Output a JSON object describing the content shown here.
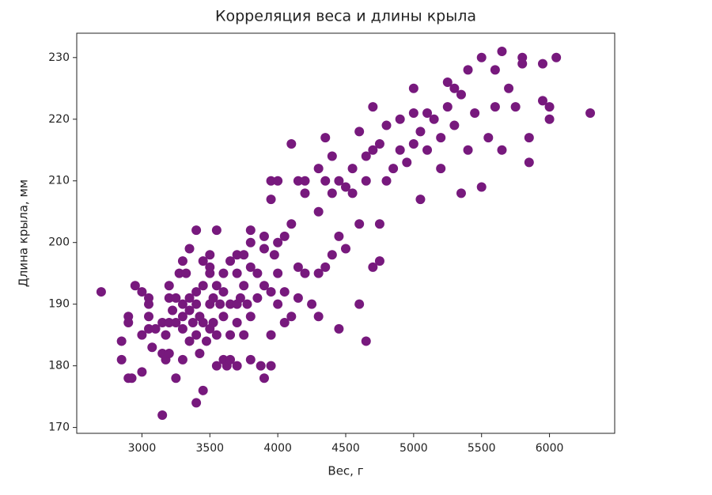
{
  "chart_data": {
    "type": "scatter",
    "title": "Корреляция веса и длины крыла",
    "x_label": "Вес, г",
    "y_label": "Длина крыла, мм",
    "color": "#77197d",
    "xlim": [
      2520,
      6480
    ],
    "ylim": [
      169.05,
      233.95
    ],
    "xticks": [
      3000,
      3500,
      4000,
      4500,
      5000,
      5500,
      6000
    ],
    "yticks": [
      170,
      180,
      190,
      200,
      210,
      220,
      230
    ],
    "x": [
      2700,
      2850,
      2850,
      2900,
      2900,
      2900,
      2925,
      2950,
      3000,
      3000,
      3000,
      3050,
      3050,
      3050,
      3050,
      3075,
      3100,
      3150,
      3150,
      3150,
      3175,
      3175,
      3200,
      3200,
      3200,
      3200,
      3225,
      3250,
      3250,
      3250,
      3275,
      3300,
      3300,
      3300,
      3300,
      3300,
      3325,
      3350,
      3350,
      3350,
      3350,
      3375,
      3400,
      3400,
      3400,
      3400,
      3400,
      3425,
      3425,
      3450,
      3450,
      3450,
      3450,
      3475,
      3500,
      3500,
      3500,
      3500,
      3500,
      3525,
      3525,
      3550,
      3550,
      3550,
      3550,
      3575,
      3600,
      3600,
      3600,
      3600,
      3625,
      3650,
      3650,
      3650,
      3650,
      3700,
      3700,
      3700,
      3700,
      3700,
      3725,
      3750,
      3750,
      3750,
      3775,
      3800,
      3800,
      3800,
      3800,
      3800,
      3850,
      3850,
      3875,
      3900,
      3900,
      3900,
      3900,
      3950,
      3950,
      3950,
      3950,
      3950,
      3975,
      4000,
      4000,
      4000,
      4000,
      4050,
      4050,
      4050,
      4100,
      4100,
      4100,
      4150,
      4150,
      4150,
      4200,
      4200,
      4200,
      4250,
      4300,
      4300,
      4300,
      4300,
      4350,
      4350,
      4350,
      4400,
      4400,
      4400,
      4450,
      4450,
      4450,
      4500,
      4500,
      4550,
      4550,
      4600,
      4600,
      4600,
      4650,
      4650,
      4650,
      4700,
      4700,
      4700,
      4750,
      4750,
      4750,
      4800,
      4800,
      4850,
      4900,
      4900,
      4950,
      5000,
      5000,
      5000,
      5050,
      5050,
      5100,
      5100,
      5150,
      5200,
      5200,
      5250,
      5250,
      5300,
      5300,
      5350,
      5350,
      5400,
      5400,
      5450,
      5500,
      5500,
      5550,
      5600,
      5600,
      5650,
      5650,
      5700,
      5750,
      5800,
      5800,
      5850,
      5850,
      5950,
      5950,
      6000,
      6000,
      6050,
      6300
    ],
    "values": [
      192,
      184,
      181,
      188,
      187,
      178,
      178,
      193,
      192,
      179,
      185,
      190,
      191,
      186,
      188,
      183,
      186,
      187,
      182,
      172,
      185,
      181,
      191,
      193,
      182,
      187,
      189,
      178,
      187,
      191,
      195,
      190,
      181,
      197,
      186,
      188,
      195,
      189,
      184,
      199,
      191,
      187,
      202,
      190,
      174,
      185,
      192,
      182,
      188,
      176,
      193,
      197,
      187,
      184,
      190,
      195,
      198,
      186,
      196,
      191,
      187,
      202,
      193,
      180,
      185,
      190,
      195,
      181,
      188,
      192,
      180,
      190,
      197,
      185,
      181,
      195,
      198,
      190,
      180,
      187,
      191,
      193,
      198,
      185,
      190,
      200,
      196,
      181,
      188,
      202,
      191,
      195,
      180,
      178,
      193,
      201,
      199,
      180,
      185,
      207,
      210,
      192,
      198,
      210,
      200,
      190,
      195,
      201,
      187,
      192,
      216,
      203,
      188,
      210,
      196,
      191,
      208,
      210,
      195,
      190,
      212,
      205,
      188,
      195,
      217,
      210,
      196,
      208,
      214,
      198,
      201,
      186,
      210,
      209,
      199,
      212,
      208,
      218,
      203,
      190,
      214,
      184,
      210,
      196,
      215,
      222,
      216,
      197,
      203,
      210,
      219,
      212,
      215,
      220,
      213,
      225,
      221,
      216,
      207,
      218,
      221,
      215,
      220,
      212,
      217,
      226,
      222,
      219,
      225,
      208,
      224,
      228,
      215,
      221,
      230,
      209,
      217,
      228,
      222,
      231,
      215,
      225,
      222,
      230,
      229,
      213,
      217,
      223,
      229,
      220,
      222,
      230,
      221
    ]
  }
}
